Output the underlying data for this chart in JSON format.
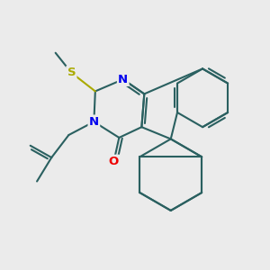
{
  "bg_color": "#ebebeb",
  "bond_color": "#2a6060",
  "N_color": "#0000ee",
  "O_color": "#ee0000",
  "S_color": "#aaaa00",
  "line_width": 1.5,
  "font_size": 9.5,
  "xlim": [
    0,
    10
  ],
  "ylim": [
    0,
    10
  ],
  "figsize": [
    3.0,
    3.0
  ],
  "dpi": 100
}
